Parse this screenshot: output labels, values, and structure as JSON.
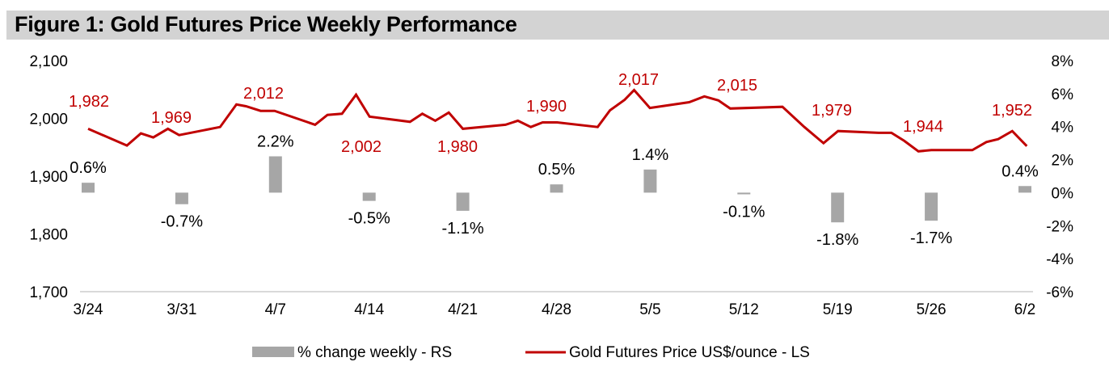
{
  "header": {
    "title": "Figure 1: Gold Futures Price Weekly Performance"
  },
  "colors": {
    "line": "#c00000",
    "bar": "#a6a6a6",
    "axis_line": "#d9d9d9",
    "title_bg": "#d3d3d3"
  },
  "chart_data": {
    "type": "bar+line",
    "title": "Figure 1: Gold Futures Price Weekly Performance",
    "xlabel": "",
    "x_ticks": [
      "3/24",
      "3/31",
      "4/7",
      "4/14",
      "4/21",
      "4/28",
      "5/5",
      "5/12",
      "5/19",
      "5/26",
      "6/2"
    ],
    "left_axis": {
      "label": "Gold Futures Price US$/ounce",
      "ylim": [
        1700,
        2100
      ],
      "ticks": [
        1700,
        1800,
        1900,
        2000,
        2100
      ],
      "tick_labels": [
        "1,700",
        "1,800",
        "1,900",
        "2,000",
        "2,100"
      ]
    },
    "right_axis": {
      "label": "% change weekly",
      "ylim": [
        -6,
        8
      ],
      "ticks": [
        -6,
        -4,
        -2,
        0,
        2,
        4,
        6,
        8
      ],
      "tick_labels": [
        "-6%",
        "-4%",
        "-2%",
        "0%",
        "2%",
        "4%",
        "6%",
        "8%"
      ]
    },
    "series": [
      {
        "name": "% change weekly - RS",
        "type": "bar",
        "axis": "right",
        "categories": [
          "3/24",
          "3/31",
          "4/7",
          "4/14",
          "4/21",
          "4/28",
          "5/5",
          "5/12",
          "5/19",
          "5/26",
          "6/2"
        ],
        "values": [
          0.6,
          -0.7,
          2.2,
          -0.5,
          -1.1,
          0.5,
          1.4,
          -0.1,
          -1.8,
          -1.7,
          0.4
        ],
        "labels": [
          "0.6%",
          "-0.7%",
          "2.2%",
          "-0.5%",
          "-1.1%",
          "0.5%",
          "1.4%",
          "-0.1%",
          "-1.8%",
          "-1.7%",
          "0.4%"
        ]
      },
      {
        "name": "Gold Futures Price US$/ounce - LS",
        "type": "line",
        "axis": "left",
        "x_index": [
          0,
          0.69,
          0.94,
          1.16,
          1.42,
          1.62,
          2.35,
          2.64,
          2.81,
          3.07,
          3.32,
          4.04,
          4.26,
          4.52,
          4.77,
          5.01,
          5.73,
          5.95,
          6.18,
          6.42,
          6.67,
          7.43,
          7.65,
          7.88,
          8.09,
          8.35,
          9.07,
          9.29,
          9.55,
          9.72,
          10.0,
          10.7,
          10.97,
          11.22,
          11.43,
          12.36,
          12.75,
          13.09,
          13.35,
          14.07,
          14.3,
          14.53,
          14.78,
          15.01,
          15.74,
          15.99,
          16.2,
          16.45,
          16.71
        ],
        "values": [
          1982,
          1953,
          1974,
          1967,
          1982,
          1971,
          1985,
          2024,
          2021,
          2013,
          2013,
          1989,
          2006,
          2008,
          2041,
          2003,
          1994,
          2008,
          1996,
          2010,
          1982,
          1989,
          1996,
          1985,
          1993,
          1993,
          1985,
          2014,
          2032,
          2049,
          2018,
          2028,
          2038,
          2031,
          2017,
          2020,
          1985,
          1957,
          1978,
          1975,
          1975,
          1961,
          1943,
          1945,
          1945,
          1959,
          1964,
          1978,
          1952
        ],
        "data_labels": [
          {
            "week": "3/24",
            "text": "1,982"
          },
          {
            "week": "3/31",
            "text": "1,969"
          },
          {
            "week": "4/7",
            "text": "2,012"
          },
          {
            "week": "4/14",
            "text": "2,002"
          },
          {
            "week": "4/21",
            "text": "1,980"
          },
          {
            "week": "4/28",
            "text": "1,990"
          },
          {
            "week": "5/5",
            "text": "2,017"
          },
          {
            "week": "5/12",
            "text": "2,015"
          },
          {
            "week": "5/19",
            "text": "1,979"
          },
          {
            "week": "5/26",
            "text": "1,944"
          },
          {
            "week": "6/2",
            "text": "1,952"
          }
        ]
      }
    ],
    "legend": {
      "placement": "bottom",
      "entries": [
        "% change weekly - RS",
        "Gold Futures Price US$/ounce - LS"
      ]
    },
    "grid": false
  }
}
